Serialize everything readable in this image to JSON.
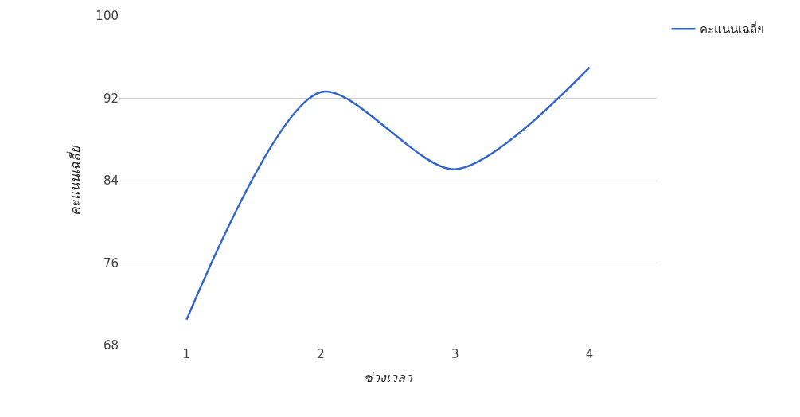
{
  "chart_data": {
    "type": "line",
    "xlabel": "ช่วงเวลา",
    "ylabel": "คะแนนเฉลี่ย",
    "x": [
      1,
      2,
      3,
      4
    ],
    "series": [
      {
        "name": "คะแนนเฉลี่ย",
        "color": "#3366cc",
        "values": [
          70.5,
          92.6,
          85.1,
          95
        ]
      }
    ],
    "xlim": [
      0.5,
      4.5
    ],
    "xticks": [
      1,
      2,
      3,
      4
    ],
    "ylim": [
      68,
      100
    ],
    "yticks": [
      68,
      76,
      84,
      92,
      100
    ],
    "grid": "y",
    "legend": "top right",
    "marker": "none",
    "line_style": "solid"
  }
}
